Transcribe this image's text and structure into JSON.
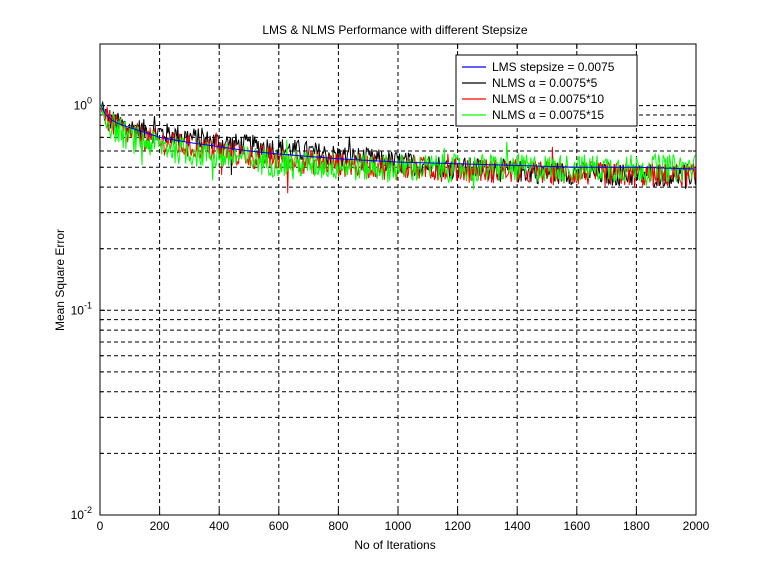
{
  "chart_data": {
    "type": "line",
    "title": "LMS & NLMS Performance with different Stepsize",
    "xlabel": "No of Iterations",
    "ylabel": "Mean Square Error",
    "xlim": [
      0,
      2000
    ],
    "ylim": [
      0.01,
      2
    ],
    "yscale": "log",
    "grid": true,
    "legend_position": "top-right",
    "xticks": [
      0,
      200,
      400,
      600,
      800,
      1000,
      1200,
      1400,
      1600,
      1800,
      2000
    ],
    "yticks": [
      {
        "value": 0.01,
        "base": "10",
        "exp": "-2"
      },
      {
        "value": 0.1,
        "base": "10",
        "exp": "-1"
      },
      {
        "value": 1,
        "base": "10",
        "exp": "0"
      }
    ],
    "series": [
      {
        "name": "LMS stepsize = 0.0075",
        "color": "#0000ff",
        "x": [
          0,
          5,
          10,
          20,
          40,
          60,
          100,
          150,
          200,
          300,
          400,
          500,
          600,
          800,
          1000,
          1200,
          1400,
          1600,
          1800,
          2000
        ],
        "y": [
          1.0,
          1.0,
          0.95,
          0.9,
          0.85,
          0.82,
          0.78,
          0.74,
          0.7,
          0.66,
          0.63,
          0.6,
          0.58,
          0.55,
          0.53,
          0.52,
          0.51,
          0.5,
          0.5,
          0.49
        ]
      },
      {
        "name": "NLMS α = 0.0075*5",
        "color": "#000000",
        "x": [
          0,
          10,
          20,
          40,
          60,
          100,
          150,
          200,
          300,
          400,
          500,
          600,
          800,
          1000,
          1200,
          1400,
          1600,
          1800,
          2000
        ],
        "y": [
          1.0,
          0.95,
          0.9,
          0.85,
          0.82,
          0.78,
          0.76,
          0.74,
          0.7,
          0.66,
          0.64,
          0.62,
          0.57,
          0.53,
          0.5,
          0.48,
          0.47,
          0.46,
          0.46
        ]
      },
      {
        "name": "NLMS α = 0.0075*10",
        "color": "#ff0000",
        "x": [
          0,
          10,
          20,
          40,
          60,
          100,
          150,
          200,
          300,
          400,
          500,
          600,
          800,
          1000,
          1200,
          1400,
          1600,
          1800,
          2000
        ],
        "y": [
          1.0,
          0.93,
          0.88,
          0.82,
          0.78,
          0.73,
          0.7,
          0.67,
          0.63,
          0.6,
          0.57,
          0.55,
          0.52,
          0.5,
          0.49,
          0.48,
          0.47,
          0.46,
          0.46
        ]
      },
      {
        "name": "NLMS α = 0.0075*15",
        "color": "#00ff00",
        "x": [
          0,
          10,
          20,
          40,
          60,
          100,
          150,
          200,
          300,
          400,
          500,
          600,
          800,
          1000,
          1200,
          1400,
          1600,
          1800,
          2000
        ],
        "y": [
          1.0,
          0.93,
          0.87,
          0.8,
          0.76,
          0.7,
          0.67,
          0.64,
          0.6,
          0.57,
          0.55,
          0.53,
          0.51,
          0.5,
          0.5,
          0.5,
          0.5,
          0.5,
          0.5
        ]
      }
    ]
  }
}
